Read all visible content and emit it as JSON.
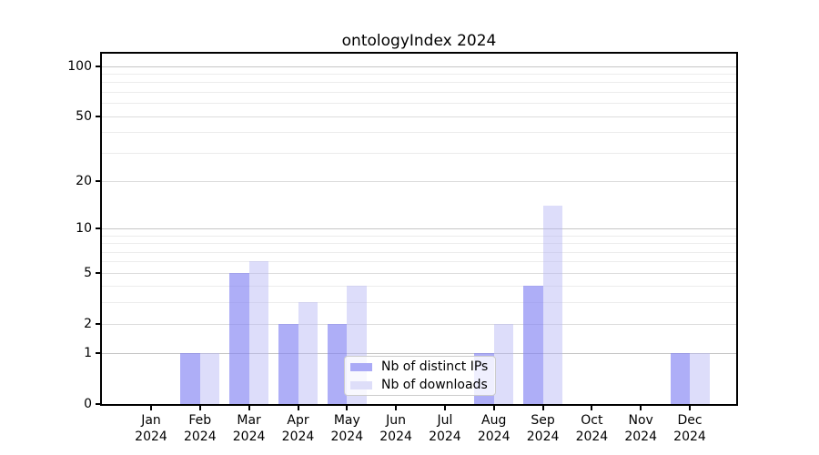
{
  "chart_data": {
    "type": "bar",
    "title": "ontologyIndex 2024",
    "year_label": "2024",
    "categories": [
      "Jan",
      "Feb",
      "Mar",
      "Apr",
      "May",
      "Jun",
      "Jul",
      "Aug",
      "Sep",
      "Oct",
      "Nov",
      "Dec"
    ],
    "series": [
      {
        "name": "Nb of distinct IPs",
        "color": "rgba(130,130,243,0.65)",
        "color_hex": "#aaaaf6",
        "values": [
          0,
          1,
          5,
          2,
          2,
          0,
          0,
          1,
          4,
          0,
          0,
          1
        ]
      },
      {
        "name": "Nb of downloads",
        "color": "rgba(180,180,243,0.45)",
        "color_hex": "#dedef9",
        "values": [
          0,
          1,
          6,
          3,
          4,
          0,
          0,
          2,
          14,
          0,
          0,
          1
        ]
      }
    ],
    "xlabel": "",
    "ylabel": "",
    "y_axis": {
      "scale": "log1p",
      "tick_labels": [
        100,
        50,
        20,
        10,
        5,
        2,
        1,
        0
      ],
      "major_gridlines": [
        1,
        10,
        100
      ],
      "mid_gridlines": [
        2,
        5,
        20,
        50
      ],
      "minor_gridlines": [
        3,
        4,
        6,
        7,
        8,
        9,
        30,
        40,
        60,
        70,
        80,
        90
      ],
      "ylim": [
        0,
        118
      ]
    },
    "legend": {
      "position": "lower center"
    },
    "grid": true
  }
}
